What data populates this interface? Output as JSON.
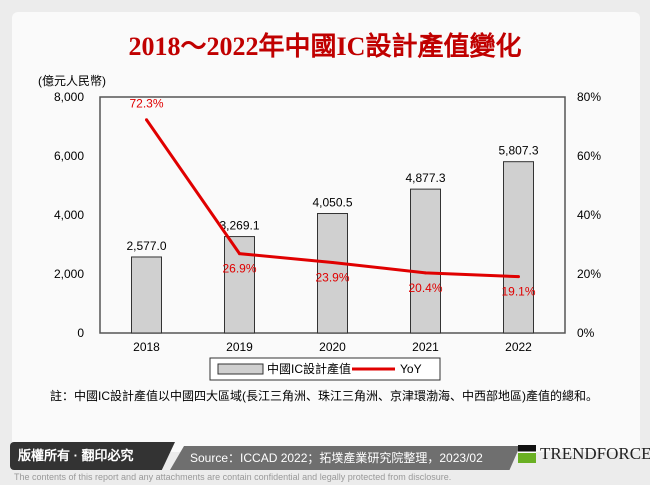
{
  "title": "2018～2022年中國IC設計產值變化",
  "chart_data": {
    "type": "bar+line",
    "categories": [
      "2018",
      "2019",
      "2020",
      "2021",
      "2022"
    ],
    "series": [
      {
        "name": "中國IC設計產值",
        "type": "bar",
        "axis": "left",
        "values": [
          2577.0,
          3269.1,
          4050.5,
          4877.3,
          5807.3
        ],
        "labels": [
          "2,577.0",
          "3,269.1",
          "4,050.5",
          "4,877.3",
          "5,807.3"
        ],
        "color": "#d0d0d0"
      },
      {
        "name": "YoY",
        "type": "line",
        "axis": "right",
        "values": [
          72.3,
          26.9,
          23.9,
          20.4,
          19.1
        ],
        "labels": [
          "72.3%",
          "26.9%",
          "23.9%",
          "20.4%",
          "19.1%"
        ],
        "color": "#e00000"
      }
    ],
    "ylabel": "(億元人民幣)",
    "ylim": [
      0,
      8000
    ],
    "yticks": [
      "0",
      "2,000",
      "4,000",
      "6,000",
      "8,000"
    ],
    "y2lim": [
      0,
      80
    ],
    "y2ticks": [
      "0%",
      "20%",
      "40%",
      "60%",
      "80%"
    ],
    "legend": "bottom",
    "grid": false
  },
  "note": "註：中國IC設計產值以中國四大區域(長江三角洲、珠江三角洲、京津環渤海、中西部地區)產值的總和。",
  "footer": {
    "copyright": "版權所有 · 翻印必究",
    "source": "Source：ICCAD 2022；拓墣產業研究院整理，2023/02",
    "brand": "TRENDFORCE",
    "disclaimer": "The contents of this report and any attachments are contain confidential and legally protected from disclosure."
  }
}
